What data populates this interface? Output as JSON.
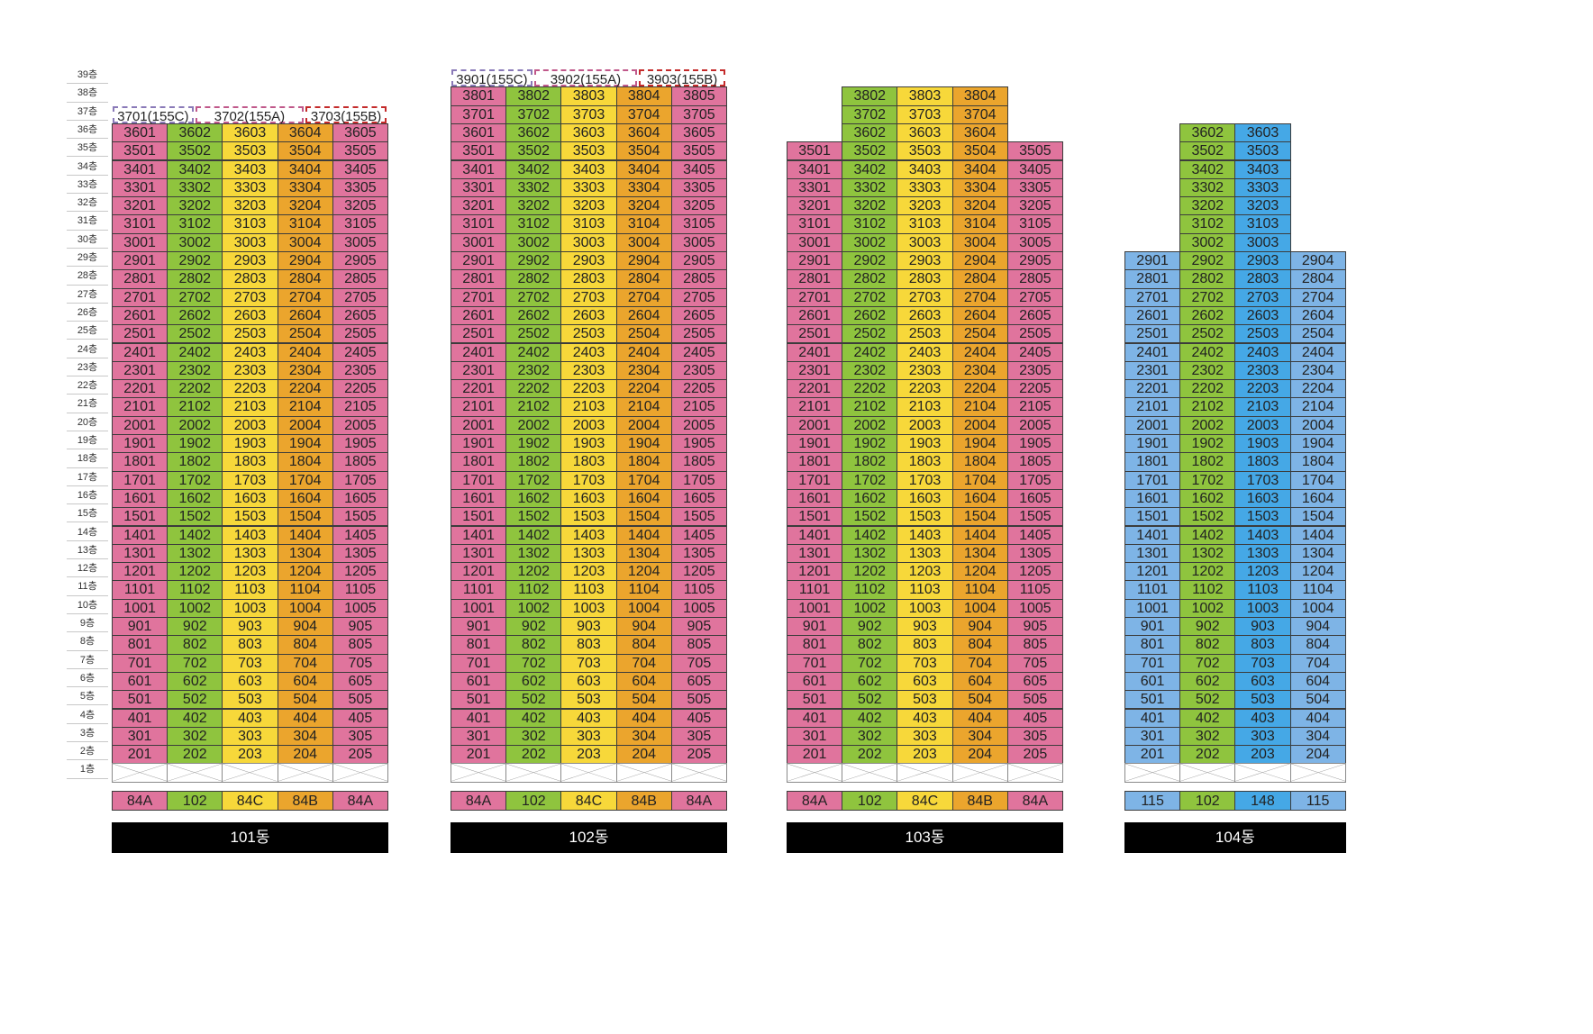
{
  "colors": {
    "pink": "#e0749d",
    "green": "#8fc43e",
    "yellow": "#f7d83a",
    "orange": "#eba52d",
    "light_blue": "#7eb4e6",
    "blue": "#45a8e6"
  },
  "floors": [
    "39층",
    "38층",
    "37층",
    "36층",
    "35층",
    "34층",
    "33층",
    "32층",
    "31층",
    "30층",
    "29층",
    "28층",
    "27층",
    "26층",
    "25층",
    "24층",
    "23층",
    "22층",
    "21층",
    "20층",
    "19층",
    "18층",
    "17층",
    "16층",
    "15층",
    "14층",
    "13층",
    "12층",
    "11층",
    "10층",
    "9층",
    "8층",
    "7층",
    "6층",
    "5층",
    "4층",
    "3층",
    "2층",
    "1층"
  ],
  "buildings": [
    {
      "name": "101동",
      "line_colors": [
        "pink",
        "green",
        "yellow",
        "orange",
        "pink"
      ],
      "line_heights": [
        36,
        36,
        36,
        36,
        36
      ],
      "types": [
        "84A",
        "102",
        "84C",
        "84B",
        "84A"
      ],
      "special": [
        {
          "label": "3701(155C)",
          "floor": 37,
          "col_start": 0,
          "span": 1.5,
          "border": "#8a7ab8"
        },
        {
          "label": "3702(155A)",
          "floor": 37,
          "col_start": 1.5,
          "span": 2.0,
          "border": "#c0588a"
        },
        {
          "label": "3703(155B)",
          "floor": 37,
          "col_start": 3.5,
          "span": 1.5,
          "border": "#c42a2a"
        }
      ]
    },
    {
      "name": "102동",
      "line_colors": [
        "pink",
        "green",
        "yellow",
        "orange",
        "pink"
      ],
      "line_heights": [
        38,
        38,
        38,
        38,
        38
      ],
      "types": [
        "84A",
        "102",
        "84C",
        "84B",
        "84A"
      ],
      "special": [
        {
          "label": "3901(155C)",
          "floor": 39,
          "col_start": 0,
          "span": 1.5,
          "border": "#8a7ab8"
        },
        {
          "label": "3902(155A)",
          "floor": 39,
          "col_start": 1.5,
          "span": 1.9,
          "border": "#c0588a"
        },
        {
          "label": "3903(155B)",
          "floor": 39,
          "col_start": 3.4,
          "span": 1.6,
          "border": "#c42a2a"
        }
      ]
    },
    {
      "name": "103동",
      "line_colors": [
        "pink",
        "green",
        "yellow",
        "orange",
        "pink"
      ],
      "line_heights": [
        35,
        38,
        38,
        38,
        35
      ],
      "types": [
        "84A",
        "102",
        "84C",
        "84B",
        "84A"
      ],
      "special": []
    },
    {
      "name": "104동",
      "line_colors": [
        "light_blue",
        "green",
        "blue",
        "light_blue"
      ],
      "line_heights": [
        29,
        36,
        36,
        29
      ],
      "types": [
        "115",
        "102",
        "148",
        "115"
      ],
      "special": []
    }
  ]
}
